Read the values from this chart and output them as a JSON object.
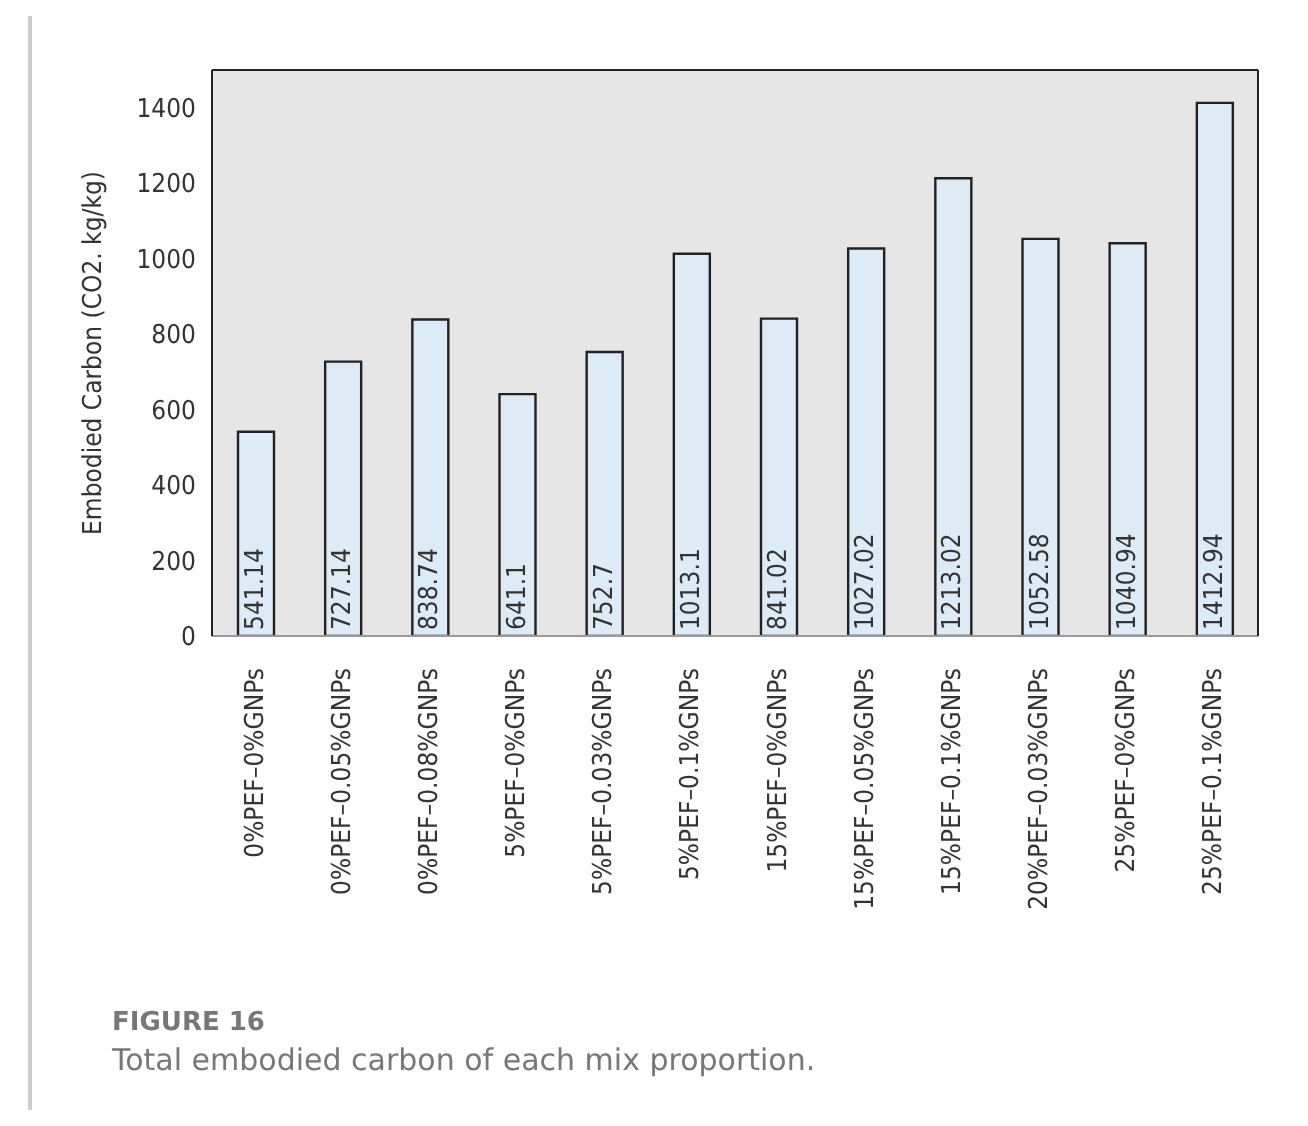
{
  "chart_data": {
    "type": "bar",
    "ylabel": "Embodied Carbon (CO2. kg/kg)",
    "categories": [
      "0%PEF–0%GNPs",
      "0%PEF–0.05%GNPs",
      "0%PEF–0.08%GNPs",
      "5%PEF–0%GNPs",
      "5%PEF–0.03%GNPs",
      "5%PEF–0.1%GNPs",
      "15%PEF–0%GNPs",
      "15%PEF–0.05%GNPs",
      "15%PEF–0.1%GNPs",
      "20%PEF–0.03%GNPs",
      "25%PEF–0%GNPs",
      "25%PEF–0.1%GNPs"
    ],
    "values": [
      541.14,
      727.14,
      838.74,
      641.1,
      752.7,
      1013.1,
      841.02,
      1027.02,
      1213.02,
      1052.58,
      1040.94,
      1412.94
    ],
    "color": "#ddebf7",
    "ylim": [
      0,
      1500
    ],
    "yticks": [
      0,
      200,
      400,
      600,
      800,
      1000,
      1200,
      1400
    ],
    "grid": false,
    "data_labels": true,
    "annotations": [
      "FIGURE 16",
      "Total embodied carbon of each mix proportion."
    ]
  }
}
